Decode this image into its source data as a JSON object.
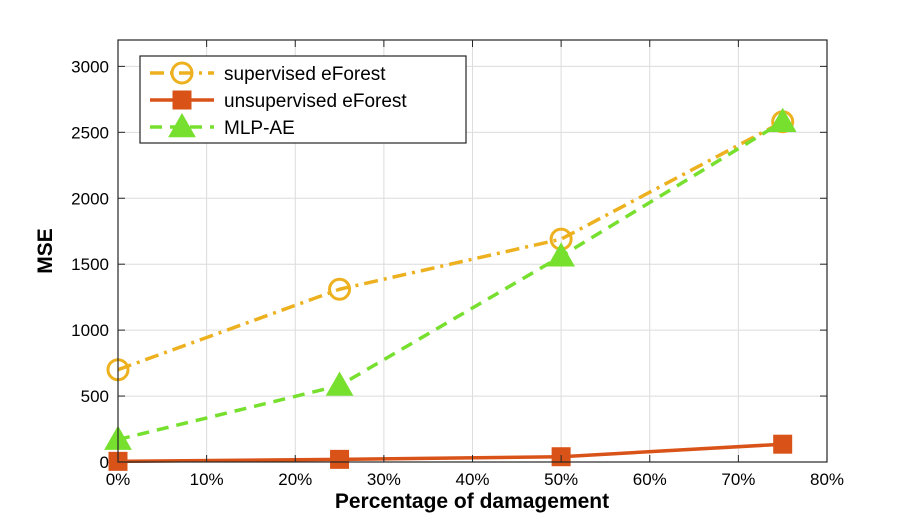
{
  "chart_data": {
    "type": "line",
    "title": "",
    "xlabel": "Percentage of damagement",
    "ylabel": "MSE",
    "x": [
      0,
      25,
      50,
      75
    ],
    "xlim": [
      0,
      80
    ],
    "ylim": [
      0,
      3200
    ],
    "xticks": [
      0,
      10,
      20,
      30,
      40,
      50,
      60,
      70,
      80
    ],
    "xtick_labels": [
      "0%",
      "10%",
      "20%",
      "30%",
      "40%",
      "50%",
      "60%",
      "70%",
      "80%"
    ],
    "yticks": [
      0,
      500,
      1000,
      1500,
      2000,
      2500,
      3000
    ],
    "ytick_labels": [
      "0",
      "500",
      "1000",
      "1500",
      "2000",
      "2500",
      "3000"
    ],
    "grid": true,
    "legend_position": "top-left",
    "series": [
      {
        "name": "supervised eForest",
        "values": [
          700,
          1310,
          1690,
          2580
        ],
        "color": "#EDB120",
        "line_style": "dash-dot",
        "marker": "circle"
      },
      {
        "name": "unsupervised eForest",
        "values": [
          5,
          20,
          40,
          135
        ],
        "color": "#D95319",
        "line_style": "solid",
        "marker": "square"
      },
      {
        "name": "MLP-AE",
        "values": [
          170,
          580,
          1560,
          2580
        ],
        "color": "#77E02F",
        "line_style": "dashed",
        "marker": "triangle"
      }
    ]
  }
}
